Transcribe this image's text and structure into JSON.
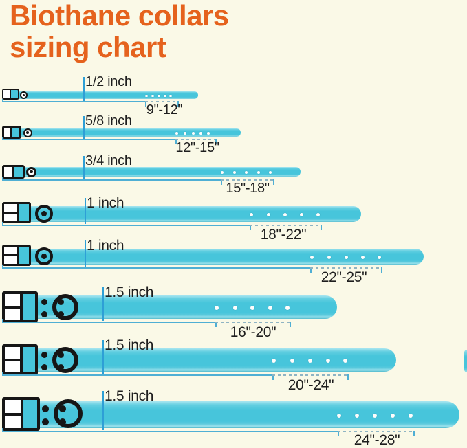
{
  "title": {
    "line1": "Biothane collars",
    "line2": "sizing chart"
  },
  "colors": {
    "background": "#FAF9E7",
    "title_orange": "#E5621D",
    "strap_cyan": "#47C5DB",
    "dimension_blue": "#4FAFD4",
    "buckle_black": "#161616",
    "text": "#1E1E1E"
  },
  "collars": [
    {
      "width_label": "1/2 inch",
      "size_range": "9\"-12\""
    },
    {
      "width_label": "5/8 inch",
      "size_range": "12\"-15\""
    },
    {
      "width_label": "3/4 inch",
      "size_range": "15\"-18\""
    },
    {
      "width_label": "1 inch",
      "size_range": "18\"-22\""
    },
    {
      "width_label": "1 inch",
      "size_range": "22\"-25\""
    },
    {
      "width_label": "1.5 inch",
      "size_range": "16\"-20\""
    },
    {
      "width_label": "1.5 inch",
      "size_range": "20\"-24\""
    },
    {
      "width_label": "1.5 inch",
      "size_range": "24\"-28\""
    }
  ]
}
